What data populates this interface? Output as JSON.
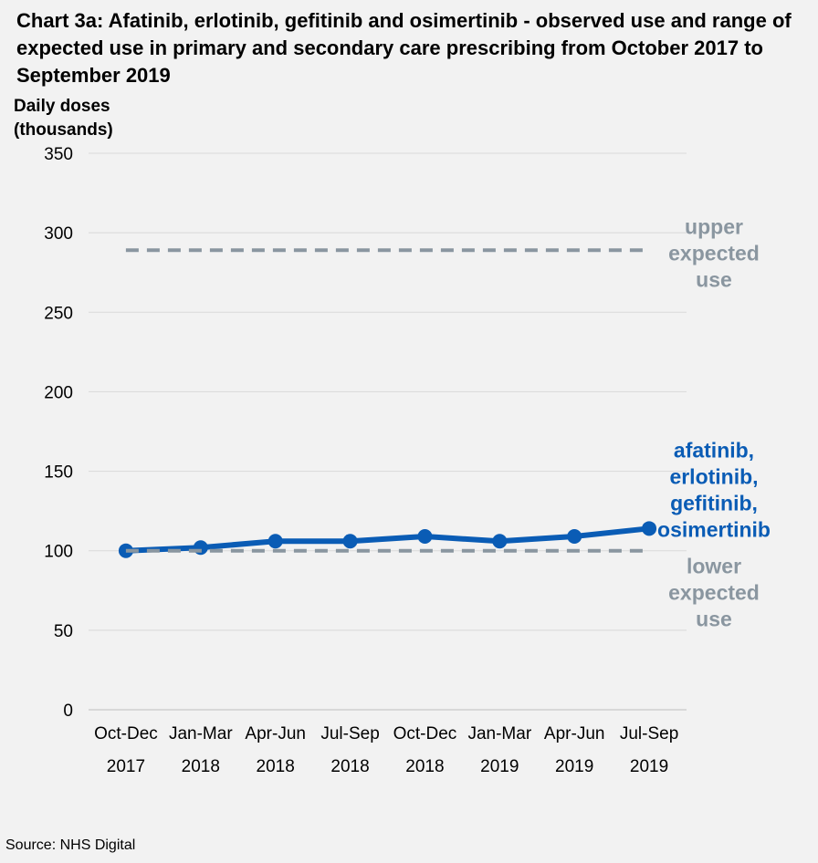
{
  "chart_data": {
    "type": "line",
    "title": "Chart 3a: Afatinib, erlotinib, gefitinib and osimertinib - observed use and range of expected use in primary and secondary care prescribing from October 2017 to September 2019",
    "ylabel_lines": [
      "Daily doses",
      "(thousands)"
    ],
    "ylim": [
      0,
      350
    ],
    "yticks": [
      0,
      50,
      100,
      150,
      200,
      250,
      300,
      350
    ],
    "grid": true,
    "categories": [
      [
        "Oct-Dec",
        "2017"
      ],
      [
        "Jan-Mar",
        "2018"
      ],
      [
        "Apr-Jun",
        "2018"
      ],
      [
        "Jul-Sep",
        "2018"
      ],
      [
        "Oct-Dec",
        "2018"
      ],
      [
        "Jan-Mar",
        "2019"
      ],
      [
        "Apr-Jun",
        "2019"
      ],
      [
        "Jul-Sep",
        "2019"
      ]
    ],
    "series": [
      {
        "name_lines": [
          "afatinib,",
          "erlotinib,",
          "gefitinib,",
          "osimertinib"
        ],
        "style": "solid-markers",
        "color": "#0a5cb5",
        "values": [
          100,
          102,
          106,
          106,
          109,
          106,
          109,
          114
        ]
      },
      {
        "name_lines": [
          "upper",
          "expected",
          "use"
        ],
        "style": "dashed",
        "color": "#8a96a0",
        "values": [
          289,
          289,
          289,
          289,
          289,
          289,
          289,
          289
        ]
      },
      {
        "name_lines": [
          "lower",
          "expected",
          "use"
        ],
        "style": "dashed",
        "color": "#8a96a0",
        "values": [
          100,
          100,
          100,
          100,
          100,
          100,
          100,
          100
        ]
      }
    ]
  },
  "source": "Source: NHS Digital"
}
